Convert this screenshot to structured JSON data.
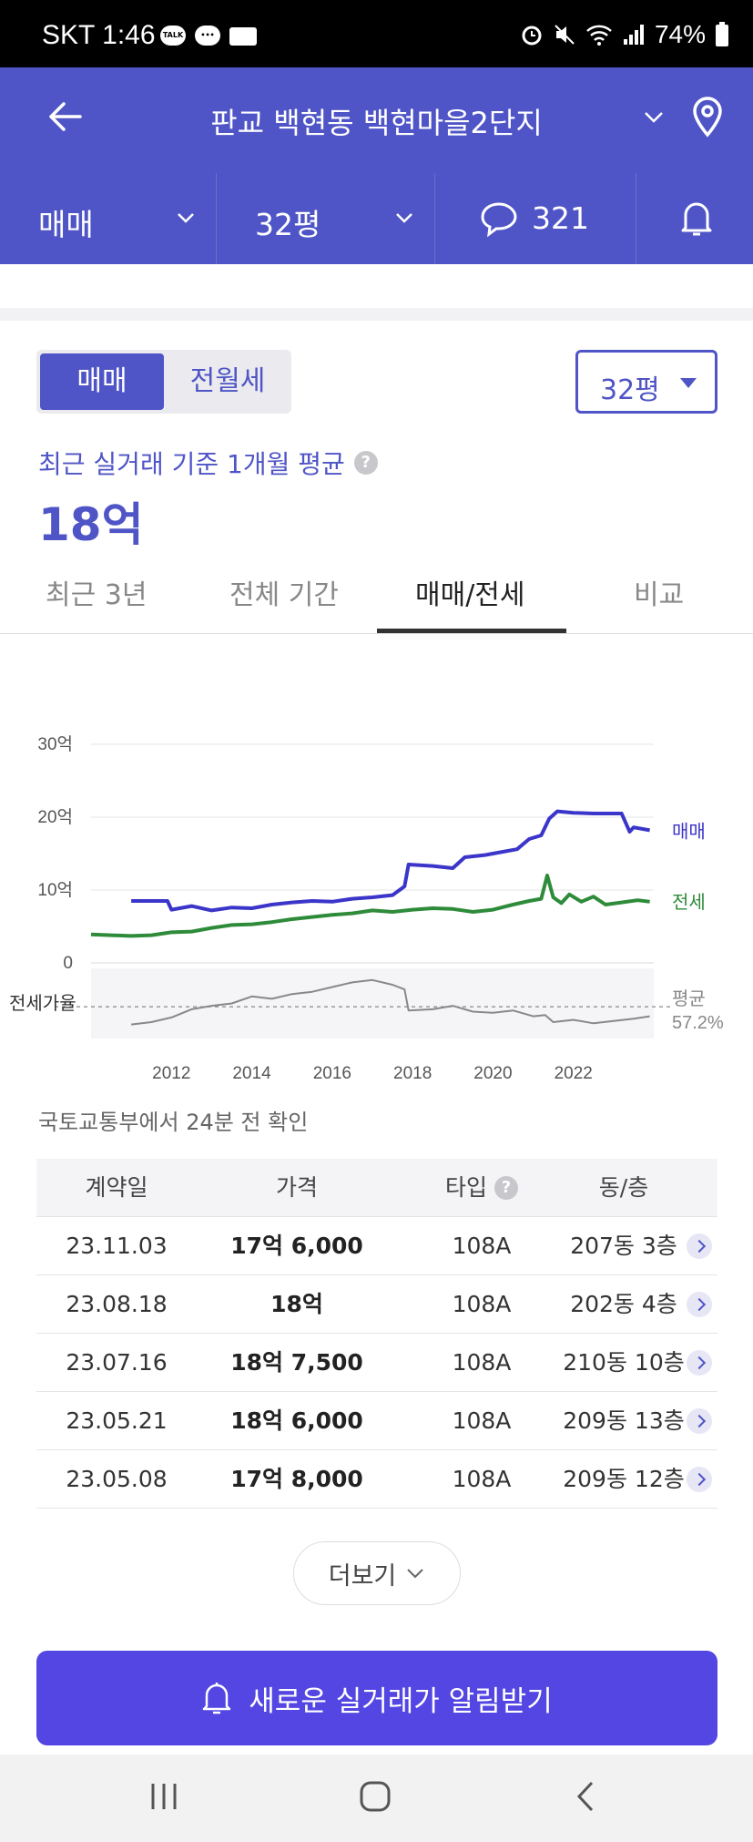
{
  "status_bar": {
    "carrier_time": "SKT 1:46",
    "battery": "74%",
    "talk_label": "TALK"
  },
  "header": {
    "title": "판교 백현동 백현마을2단지"
  },
  "filters": {
    "trade_type": "매매",
    "area": "32평",
    "comment_count": "321"
  },
  "summary": {
    "toggle_sale": "매매",
    "toggle_rent": "전월세",
    "area_select": "32평",
    "avg_label": "최근 실거래 기준 1개월 평균",
    "avg_value": "18억"
  },
  "tabs": [
    {
      "label": "최근 3년"
    },
    {
      "label": "전체 기간"
    },
    {
      "label": "매매/전세"
    },
    {
      "label": "비교"
    }
  ],
  "chart_data": {
    "type": "line",
    "y_ticks": [
      "30억",
      "20억",
      "10억",
      "0"
    ],
    "x_ticks": [
      "2012",
      "2014",
      "2016",
      "2018",
      "2020",
      "2022"
    ],
    "ylim": [
      0,
      30
    ],
    "series": [
      {
        "name": "매매",
        "color": "#3b35c9",
        "points": [
          [
            2011.0,
            8.5
          ],
          [
            2011.9,
            8.5
          ],
          [
            2012.0,
            7.3
          ],
          [
            2012.5,
            7.8
          ],
          [
            2013.0,
            7.2
          ],
          [
            2013.5,
            7.6
          ],
          [
            2014.0,
            7.5
          ],
          [
            2014.5,
            8.0
          ],
          [
            2015.0,
            8.3
          ],
          [
            2015.5,
            8.5
          ],
          [
            2016.0,
            8.4
          ],
          [
            2016.5,
            8.8
          ],
          [
            2017.0,
            9.0
          ],
          [
            2017.5,
            9.3
          ],
          [
            2017.8,
            10.5
          ],
          [
            2017.9,
            13.5
          ],
          [
            2018.5,
            13.3
          ],
          [
            2019.0,
            13.0
          ],
          [
            2019.3,
            14.5
          ],
          [
            2019.8,
            14.8
          ],
          [
            2020.2,
            15.2
          ],
          [
            2020.6,
            15.6
          ],
          [
            2020.9,
            17.0
          ],
          [
            2021.2,
            17.5
          ],
          [
            2021.4,
            19.8
          ],
          [
            2021.6,
            20.8
          ],
          [
            2022.0,
            20.6
          ],
          [
            2022.5,
            20.5
          ],
          [
            2023.2,
            20.5
          ],
          [
            2023.4,
            18.0
          ],
          [
            2023.5,
            18.6
          ],
          [
            2023.9,
            18.2
          ]
        ]
      },
      {
        "name": "전세",
        "color": "#2e8b3a",
        "points": [
          [
            2010.0,
            3.9
          ],
          [
            2010.5,
            3.8
          ],
          [
            2011.0,
            3.7
          ],
          [
            2011.5,
            3.8
          ],
          [
            2012.0,
            4.2
          ],
          [
            2012.5,
            4.3
          ],
          [
            2013.0,
            4.8
          ],
          [
            2013.5,
            5.2
          ],
          [
            2014.0,
            5.3
          ],
          [
            2014.5,
            5.6
          ],
          [
            2015.0,
            6.0
          ],
          [
            2015.5,
            6.3
          ],
          [
            2016.0,
            6.6
          ],
          [
            2016.5,
            6.8
          ],
          [
            2017.0,
            7.2
          ],
          [
            2017.5,
            7.0
          ],
          [
            2018.0,
            7.3
          ],
          [
            2018.5,
            7.5
          ],
          [
            2019.0,
            7.4
          ],
          [
            2019.5,
            7.0
          ],
          [
            2020.0,
            7.3
          ],
          [
            2020.5,
            8.0
          ],
          [
            2020.9,
            8.5
          ],
          [
            2021.2,
            8.8
          ],
          [
            2021.35,
            12.0
          ],
          [
            2021.5,
            9.0
          ],
          [
            2021.7,
            8.2
          ],
          [
            2021.9,
            9.4
          ],
          [
            2022.2,
            8.4
          ],
          [
            2022.5,
            9.1
          ],
          [
            2022.8,
            8.0
          ],
          [
            2023.2,
            8.3
          ],
          [
            2023.6,
            8.6
          ],
          [
            2023.9,
            8.4
          ]
        ]
      }
    ],
    "ratio_label": "전세가율",
    "ratio_avg_label": "평균",
    "ratio_avg_value": "57.2%",
    "ratio_series": {
      "name": "전세가율",
      "color": "#888888",
      "avg": 57.2,
      "points": [
        [
          2011.0,
          42
        ],
        [
          2011.5,
          44
        ],
        [
          2012.0,
          48
        ],
        [
          2012.5,
          55
        ],
        [
          2013.0,
          58
        ],
        [
          2013.5,
          60
        ],
        [
          2014.0,
          66
        ],
        [
          2014.5,
          64
        ],
        [
          2015.0,
          68
        ],
        [
          2015.5,
          70
        ],
        [
          2016.0,
          74
        ],
        [
          2016.5,
          78
        ],
        [
          2017.0,
          80
        ],
        [
          2017.5,
          76
        ],
        [
          2017.8,
          72
        ],
        [
          2017.9,
          54
        ],
        [
          2018.5,
          55
        ],
        [
          2019.0,
          58
        ],
        [
          2019.5,
          53
        ],
        [
          2020.0,
          52
        ],
        [
          2020.5,
          54
        ],
        [
          2021.0,
          49
        ],
        [
          2021.3,
          50
        ],
        [
          2021.5,
          44
        ],
        [
          2022.0,
          46
        ],
        [
          2022.5,
          43
        ],
        [
          2023.0,
          45
        ],
        [
          2023.5,
          47
        ],
        [
          2023.9,
          49
        ]
      ]
    },
    "legend_placement": "right-end labels"
  },
  "source_note": "국토교통부에서 24분 전 확인",
  "table": {
    "headers": {
      "date": "계약일",
      "price": "가격",
      "type": "타입",
      "unit": "동/층"
    },
    "rows": [
      {
        "date": "23.11.03",
        "price": "17억 6,000",
        "type": "108A",
        "unit": "207동 3층"
      },
      {
        "date": "23.08.18",
        "price": "18억",
        "type": "108A",
        "unit": "202동 4층"
      },
      {
        "date": "23.07.16",
        "price": "18억 7,500",
        "type": "108A",
        "unit": "210동 10층"
      },
      {
        "date": "23.05.21",
        "price": "18억 6,000",
        "type": "108A",
        "unit": "209동 13층"
      },
      {
        "date": "23.05.08",
        "price": "17억 8,000",
        "type": "108A",
        "unit": "209동 12층"
      }
    ]
  },
  "more_button": "더보기",
  "alert_button": "새로운 실거래가 알림받기",
  "colors": {
    "brand": "#4f55c6",
    "cta": "#5346e2",
    "sale_line": "#3b35c9",
    "rent_line": "#2e8b3a"
  }
}
